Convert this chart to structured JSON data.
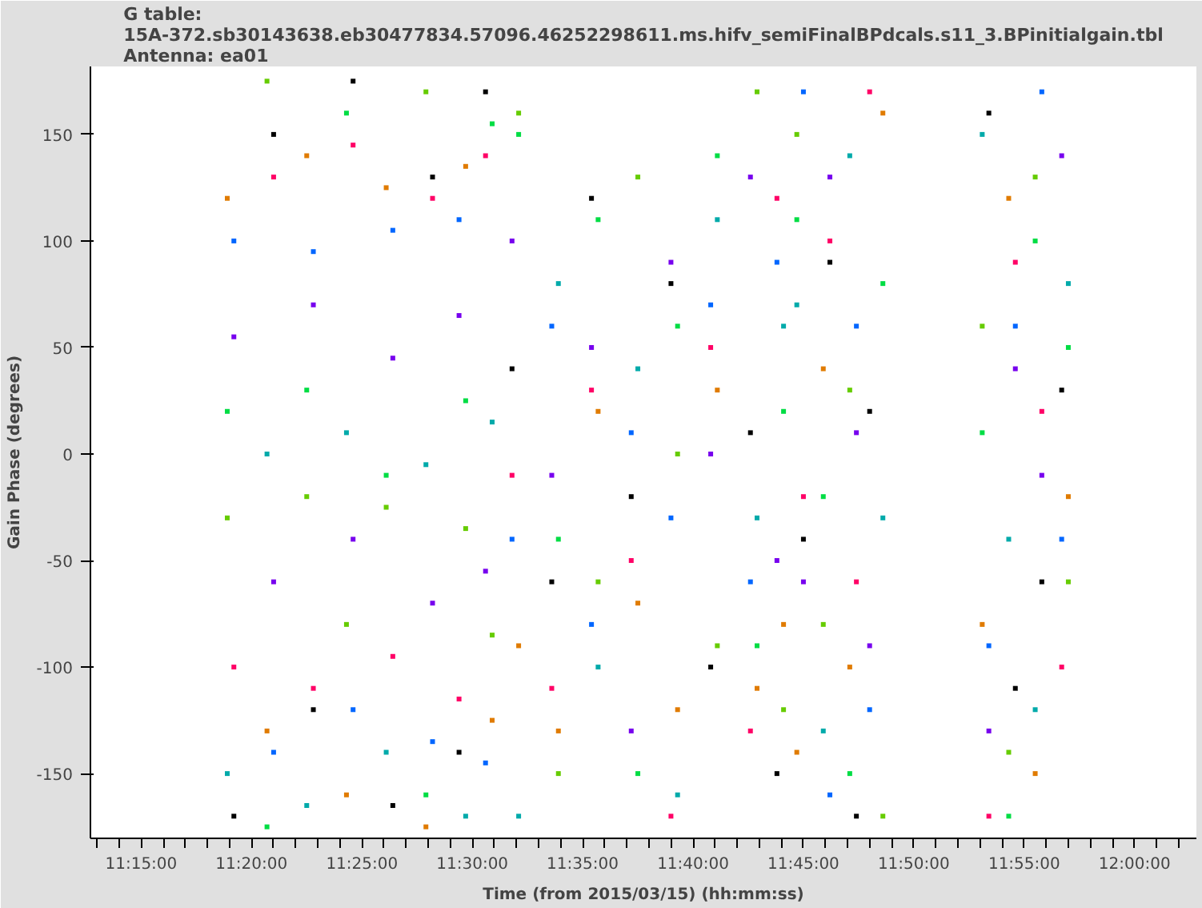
{
  "chart_data": {
    "type": "scatter",
    "title": "G table:\n15A-372.sb30143638.eb30477834.57096.46252298611.ms.hifv_semiFinalBPdcals.s11_3.BPinitialgain.tbl\nAntenna: ea01",
    "xlabel": "Time (from 2015/03/15) (hh:mm:ss)",
    "ylabel": "Gain Phase (degrees)",
    "marker": "square",
    "grid": false,
    "xlim": [
      11.2117,
      12.0467
    ],
    "ylim": [
      -180.4,
      181.9
    ],
    "xticks": [
      {
        "value": 11.2167,
        "label": null
      },
      {
        "value": 11.2333,
        "label": null
      },
      {
        "value": 11.25,
        "label": "11:15:00"
      },
      {
        "value": 11.2667,
        "label": null
      },
      {
        "value": 11.2833,
        "label": null
      },
      {
        "value": 11.3,
        "label": null
      },
      {
        "value": 11.3167,
        "label": null
      },
      {
        "value": 11.3333,
        "label": "11:20:00"
      },
      {
        "value": 11.35,
        "label": null
      },
      {
        "value": 11.3667,
        "label": null
      },
      {
        "value": 11.3833,
        "label": null
      },
      {
        "value": 11.4,
        "label": null
      },
      {
        "value": 11.4167,
        "label": "11:25:00"
      },
      {
        "value": 11.4333,
        "label": null
      },
      {
        "value": 11.45,
        "label": null
      },
      {
        "value": 11.4667,
        "label": null
      },
      {
        "value": 11.4833,
        "label": null
      },
      {
        "value": 11.5,
        "label": "11:30:00"
      },
      {
        "value": 11.5167,
        "label": null
      },
      {
        "value": 11.5333,
        "label": null
      },
      {
        "value": 11.55,
        "label": null
      },
      {
        "value": 11.5667,
        "label": null
      },
      {
        "value": 11.5833,
        "label": "11:35:00"
      },
      {
        "value": 11.6,
        "label": null
      },
      {
        "value": 11.6167,
        "label": null
      },
      {
        "value": 11.6333,
        "label": null
      },
      {
        "value": 11.65,
        "label": null
      },
      {
        "value": 11.6667,
        "label": "11:40:00"
      },
      {
        "value": 11.6833,
        "label": null
      },
      {
        "value": 11.7,
        "label": null
      },
      {
        "value": 11.7167,
        "label": null
      },
      {
        "value": 11.7333,
        "label": null
      },
      {
        "value": 11.75,
        "label": "11:45:00"
      },
      {
        "value": 11.7667,
        "label": null
      },
      {
        "value": 11.7833,
        "label": null
      },
      {
        "value": 11.8,
        "label": null
      },
      {
        "value": 11.8167,
        "label": null
      },
      {
        "value": 11.8333,
        "label": "11:50:00"
      },
      {
        "value": 11.85,
        "label": null
      },
      {
        "value": 11.8667,
        "label": null
      },
      {
        "value": 11.8833,
        "label": null
      },
      {
        "value": 11.9,
        "label": null
      },
      {
        "value": 11.9167,
        "label": "11:55:00"
      },
      {
        "value": 11.9333,
        "label": null
      },
      {
        "value": 11.95,
        "label": null
      },
      {
        "value": 11.9667,
        "label": null
      },
      {
        "value": 11.9833,
        "label": null
      },
      {
        "value": 12.0,
        "label": "12:00:00"
      },
      {
        "value": 12.0167,
        "label": null
      },
      {
        "value": 12.0333,
        "label": null
      }
    ],
    "yticks": [
      -150,
      -100,
      -50,
      0,
      50,
      100,
      150
    ],
    "series": [
      {
        "color": "#000000",
        "x": [
          11.32,
          11.35,
          11.38,
          11.41,
          11.44,
          11.47,
          11.49,
          11.51,
          11.53,
          11.56,
          11.59,
          11.62,
          11.65,
          11.68,
          11.71,
          11.73,
          11.75,
          11.77,
          11.79,
          11.8,
          11.89,
          11.91,
          11.93,
          11.945
        ],
        "values": [
          -170,
          150,
          -120,
          175,
          -165,
          130,
          -140,
          170,
          40,
          -60,
          120,
          -20,
          80,
          -100,
          10,
          -150,
          -40,
          90,
          -170,
          20,
          160,
          -110,
          -60,
          30
        ]
      },
      {
        "color": "#e07b00",
        "x": [
          11.315,
          11.345,
          11.375,
          11.405,
          11.435,
          11.465,
          11.495,
          11.515,
          11.535,
          11.565,
          11.595,
          11.625,
          11.655,
          11.685,
          11.715,
          11.735,
          11.745,
          11.765,
          11.785,
          11.81,
          11.885,
          11.905,
          11.925,
          11.95
        ],
        "values": [
          120,
          -130,
          140,
          -160,
          125,
          -175,
          135,
          -125,
          -90,
          -130,
          20,
          -70,
          -120,
          30,
          -110,
          -80,
          -140,
          40,
          -100,
          160,
          -80,
          120,
          -150,
          -20
        ]
      },
      {
        "color": "#0066ff",
        "x": [
          11.32,
          11.35,
          11.38,
          11.41,
          11.44,
          11.47,
          11.49,
          11.51,
          11.53,
          11.56,
          11.59,
          11.62,
          11.65,
          11.68,
          11.71,
          11.73,
          11.75,
          11.77,
          11.79,
          11.8,
          11.89,
          11.91,
          11.93,
          11.945
        ],
        "values": [
          100,
          -140,
          95,
          -120,
          105,
          -135,
          110,
          -145,
          -40,
          60,
          -80,
          10,
          -30,
          70,
          -60,
          90,
          170,
          -160,
          60,
          -120,
          -90,
          60,
          170,
          -40
        ]
      },
      {
        "color": "#00dd44",
        "x": [
          11.315,
          11.345,
          11.375,
          11.405,
          11.435,
          11.465,
          11.495,
          11.515,
          11.535,
          11.565,
          11.595,
          11.625,
          11.655,
          11.685,
          11.715,
          11.735,
          11.745,
          11.765,
          11.785,
          11.81,
          11.885,
          11.905,
          11.925,
          11.95
        ],
        "values": [
          20,
          -175,
          30,
          160,
          -10,
          -160,
          25,
          155,
          150,
          -40,
          110,
          -150,
          60,
          140,
          -90,
          20,
          110,
          -20,
          -150,
          80,
          10,
          -170,
          100,
          50
        ]
      },
      {
        "color": "#7700ee",
        "x": [
          11.32,
          11.35,
          11.38,
          11.41,
          11.44,
          11.47,
          11.49,
          11.51,
          11.53,
          11.56,
          11.59,
          11.62,
          11.65,
          11.68,
          11.71,
          11.73,
          11.75,
          11.77,
          11.79,
          11.8,
          11.89,
          11.91,
          11.93,
          11.945
        ],
        "values": [
          55,
          -60,
          70,
          -40,
          45,
          -70,
          65,
          -55,
          100,
          -10,
          50,
          -130,
          90,
          0,
          130,
          -50,
          -60,
          130,
          10,
          -90,
          -130,
          40,
          -10,
          140
        ]
      },
      {
        "color": "#00aaaa",
        "x": [
          11.315,
          11.345,
          11.375,
          11.405,
          11.435,
          11.465,
          11.495,
          11.515,
          11.535,
          11.565,
          11.595,
          11.625,
          11.655,
          11.685,
          11.715,
          11.735,
          11.745,
          11.765,
          11.785,
          11.81,
          11.885,
          11.905,
          11.925,
          11.95
        ],
        "values": [
          -150,
          0,
          -165,
          10,
          -140,
          -5,
          -170,
          15,
          -170,
          80,
          -100,
          40,
          -160,
          110,
          -30,
          60,
          70,
          -130,
          140,
          -30,
          150,
          -40,
          -120,
          80
        ]
      },
      {
        "color": "#ff0066",
        "x": [
          11.32,
          11.35,
          11.38,
          11.41,
          11.44,
          11.47,
          11.49,
          11.51,
          11.53,
          11.56,
          11.59,
          11.62,
          11.65,
          11.68,
          11.71,
          11.73,
          11.75,
          11.77,
          11.79,
          11.8,
          11.89,
          11.91,
          11.93,
          11.945
        ],
        "values": [
          -100,
          130,
          -110,
          145,
          -95,
          120,
          -115,
          140,
          -10,
          -110,
          30,
          -50,
          -170,
          50,
          -130,
          120,
          -20,
          100,
          -60,
          170,
          -170,
          90,
          20,
          -100
        ]
      },
      {
        "color": "#66cc00",
        "x": [
          11.315,
          11.345,
          11.375,
          11.405,
          11.435,
          11.465,
          11.495,
          11.515,
          11.535,
          11.565,
          11.595,
          11.625,
          11.655,
          11.685,
          11.715,
          11.735,
          11.745,
          11.765,
          11.785,
          11.81,
          11.885,
          11.905,
          11.925,
          11.95
        ],
        "values": [
          -30,
          175,
          -20,
          -80,
          -25,
          170,
          -35,
          -85,
          160,
          -150,
          -60,
          130,
          0,
          -90,
          170,
          -120,
          150,
          -80,
          30,
          -170,
          60,
          -140,
          130,
          -60
        ]
      }
    ]
  }
}
